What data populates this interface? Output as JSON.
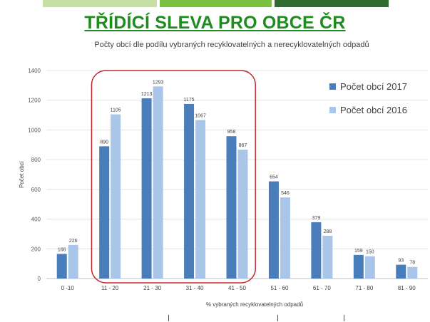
{
  "slide_title": "TŘÍDÍCÍ SLEVA PRO OBCE ČR",
  "colors": {
    "title": "#1e8c1e",
    "bar_light_green": "#c6e0a6",
    "bar_mid_green": "#7cc141",
    "bar_dark_green": "#2e6b2e",
    "series_2017": "#4a7ebb",
    "series_2016": "#a9c6e8",
    "highlight_border": "#c0282d"
  },
  "chart_data": {
    "type": "bar",
    "title": "Počty obcí dle podílu vybraných recyklovatelných a nerecyklovatelných odpadů",
    "xlabel": "% vybraných recyklovatelných odpadů",
    "ylabel": "Počet obcí",
    "ylim": [
      0,
      1400
    ],
    "yticks": [
      0,
      200,
      400,
      600,
      800,
      1000,
      1200,
      1400
    ],
    "grid": true,
    "legend_position": "top-right",
    "categories": [
      "0 -10",
      "11 - 20",
      "21 - 30",
      "31 - 40",
      "41 - 50",
      "51 - 60",
      "61 - 70",
      "71 - 80",
      "81 - 90"
    ],
    "series": [
      {
        "name": "Počet obcí 2017",
        "values": [
          166,
          890,
          1213,
          1175,
          958,
          654,
          379,
          159,
          93
        ]
      },
      {
        "name": "Počet obcí 2016",
        "values": [
          226,
          1105,
          1293,
          1067,
          867,
          546,
          288,
          150,
          78
        ]
      }
    ],
    "highlighted_categories": [
      "11 - 20",
      "21 - 30",
      "31 - 40",
      "41 - 50"
    ]
  }
}
